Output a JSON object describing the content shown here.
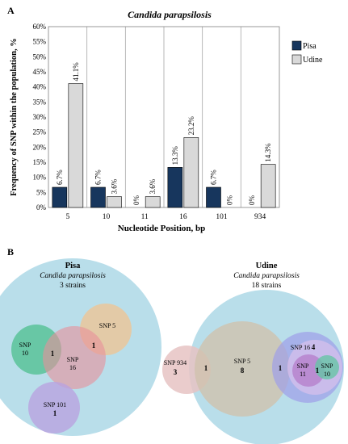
{
  "panel_labels": {
    "a": "A",
    "b": "B"
  },
  "chart_data": [
    {
      "type": "bar",
      "title": "Candida parapsilosis",
      "xlabel": "Nucleotide Position, bp",
      "ylabel": "Frequency of SNP within the population, %",
      "categories": [
        "5",
        "10",
        "11",
        "16",
        "101",
        "934"
      ],
      "ylim": [
        0,
        60
      ],
      "yticks": [
        "0%",
        "5%",
        "10%",
        "15%",
        "20%",
        "25%",
        "30%",
        "35%",
        "40%",
        "45%",
        "50%",
        "55%",
        "60%"
      ],
      "legend_position": "top-right",
      "grid": "vertical separators between categories",
      "series": [
        {
          "name": "Pisa",
          "color": "#17365d",
          "values": [
            6.7,
            6.7,
            0,
            13.3,
            6.7,
            0
          ],
          "labels": [
            "6.7%",
            "6.7%",
            "0%",
            "13.3%",
            "6.7%",
            "0%"
          ]
        },
        {
          "name": "Udine",
          "color": "#d9d9d9",
          "values": [
            41.1,
            3.6,
            3.6,
            23.2,
            0,
            14.3
          ],
          "labels": [
            "41.1%",
            "3.6%",
            "3.6%",
            "23.2%",
            "0%",
            "14.3%"
          ]
        }
      ]
    }
  ],
  "venn": [
    {
      "title": "Pisa",
      "species": "Candida parapsilosis",
      "strains": "3 strains",
      "sets": [
        "SNP 5",
        "SNP 10",
        "SNP 16",
        "SNP 101"
      ],
      "set_labels": {
        "snp5": "SNP 5",
        "snp10": "SNP\n10",
        "snp16": "SNP\n16",
        "snp101": "SNP 101"
      },
      "counts": {
        "snp10_16": "1",
        "snp5_16": "1",
        "snp101": "1"
      },
      "colors": {
        "outer": "#add8e6",
        "snp5": "#f5c28a",
        "snp10": "#4dbf8e",
        "snp16": "#e7909a",
        "snp101": "#b9a3e0"
      }
    },
    {
      "title": "Udine",
      "species": "Candida parapsilosis",
      "strains": "18 strains",
      "sets": [
        "SNP 934",
        "SNP 5",
        "SNP 16",
        "SNP 11",
        "SNP 10"
      ],
      "set_labels": {
        "snp934": "SNP 934",
        "snp5": "SNP 5",
        "snp16": "SNP 16",
        "snp11": "SNP\n11",
        "snp10": "SNP\n10"
      },
      "counts": {
        "snp934": "3",
        "snp934_5": "1",
        "snp5": "8",
        "snp5_16": "1",
        "snp16": "4",
        "snp11": "1",
        "snp10": "1"
      },
      "colors": {
        "outer": "#add8e6",
        "snp934": "#e6c3c3",
        "snp5": "#cfc2ae",
        "snp16": "#9e9ee8",
        "snp11": "#b57fcc",
        "snp10": "#66c4a6"
      }
    }
  ]
}
